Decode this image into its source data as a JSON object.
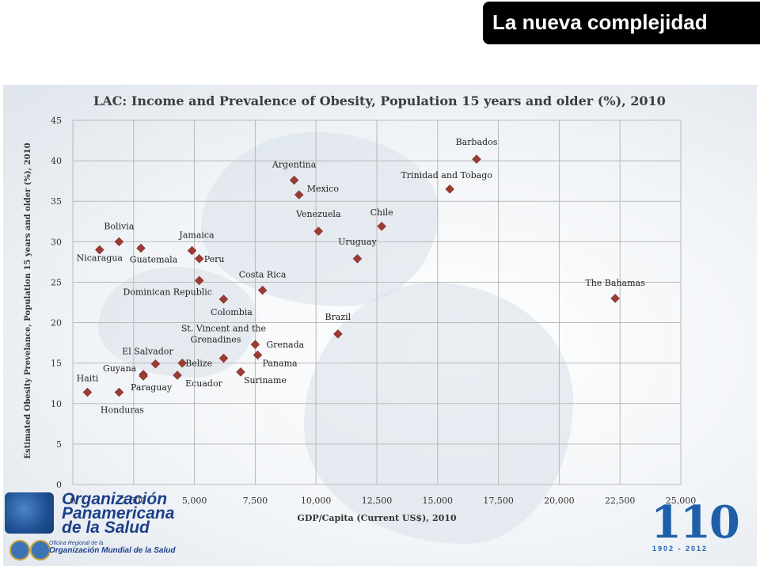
{
  "header": {
    "title": "La nueva complejidad"
  },
  "footer": {
    "org_line1": "Organización",
    "org_line2": "Panamericana",
    "org_line3": "de la Salud",
    "regional_office": "Oficina Regional de la",
    "who": "Organización Mundial de la Salud",
    "anniversary_number": "110",
    "anniversary_years": "1902 - 2012"
  },
  "colors": {
    "marker": "#9c3a34",
    "grid": "#b9b9b9",
    "header_bg": "#000000",
    "logo_blue": "#1d3f8a"
  },
  "chart_data": {
    "type": "scatter",
    "title": "LAC: Income and Prevalence of Obesity, Population 15 years and older (%), 2010",
    "xlabel": "GDP/Capita (Current US$), 2010",
    "ylabel": "Estimated Obesity Prevelance, Population 15 years and older (%), 2010",
    "xlim": [
      0,
      25000
    ],
    "ylim": [
      0,
      45
    ],
    "x_ticks": [
      0,
      2500,
      5000,
      7500,
      10000,
      12500,
      15000,
      17500,
      20000,
      22500,
      25000
    ],
    "x_tick_labels": [
      "0",
      "2,500",
      "5,000",
      "7,500",
      "10,000",
      "12,500",
      "15,000",
      "17,500",
      "20,000",
      "22,500",
      "25,000"
    ],
    "y_ticks": [
      0,
      5,
      10,
      15,
      20,
      25,
      30,
      35,
      40,
      45
    ],
    "y_tick_labels": [
      "0",
      "5",
      "10",
      "15",
      "20",
      "25",
      "30",
      "35",
      "40",
      "45"
    ],
    "grid": true,
    "points": [
      {
        "label": "Barbados",
        "x": 16600,
        "y": 40.2
      },
      {
        "label": "Argentina",
        "x": 9100,
        "y": 37.6
      },
      {
        "label": "Mexico",
        "x": 9300,
        "y": 35.8
      },
      {
        "label": "Trinidad and Tobago",
        "x": 15500,
        "y": 36.5
      },
      {
        "label": "Chile",
        "x": 12700,
        "y": 31.9
      },
      {
        "label": "Venezuela",
        "x": 10100,
        "y": 31.3
      },
      {
        "label": "Uruguay",
        "x": 11700,
        "y": 27.9
      },
      {
        "label": "The Bahamas",
        "x": 22300,
        "y": 23.0
      },
      {
        "label": "Bolivia",
        "x": 1900,
        "y": 30.0
      },
      {
        "label": "Nicaragua",
        "x": 1100,
        "y": 29.0
      },
      {
        "label": "Guatemala",
        "x": 2800,
        "y": 29.2
      },
      {
        "label": "Jamaica",
        "x": 4900,
        "y": 28.9
      },
      {
        "label": "Peru",
        "x": 5200,
        "y": 27.9
      },
      {
        "label": "Dominican Republic",
        "x": 5200,
        "y": 25.2
      },
      {
        "label": "Costa Rica",
        "x": 7800,
        "y": 24.0
      },
      {
        "label": "Colombia",
        "x": 6200,
        "y": 22.9
      },
      {
        "label": "Brazil",
        "x": 10900,
        "y": 18.6
      },
      {
        "label": "St. Vincent and the Grenadines",
        "x": 6200,
        "y": 15.6
      },
      {
        "label": "Grenada",
        "x": 7500,
        "y": 17.3
      },
      {
        "label": "Panama",
        "x": 7600,
        "y": 16.0
      },
      {
        "label": "Suriname",
        "x": 6900,
        "y": 13.9
      },
      {
        "label": "El Salvador",
        "x": 3400,
        "y": 14.9
      },
      {
        "label": "Belize",
        "x": 4500,
        "y": 15.0
      },
      {
        "label": "Ecuador",
        "x": 4300,
        "y": 13.5
      },
      {
        "label": "Guyana",
        "x": 2900,
        "y": 13.6
      },
      {
        "label": "Paraguay",
        "x": 2900,
        "y": 13.4
      },
      {
        "label": "Haiti",
        "x": 600,
        "y": 11.4
      },
      {
        "label": "Honduras",
        "x": 1900,
        "y": 11.4
      }
    ]
  }
}
